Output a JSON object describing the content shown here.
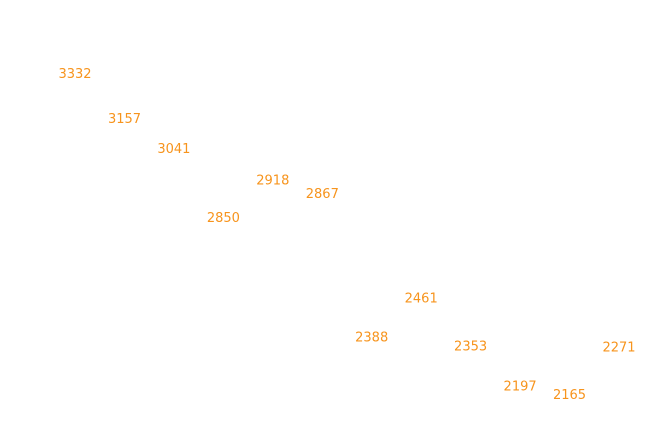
{
  "chart_data": {
    "type": "line",
    "title": "",
    "xlabel": "",
    "ylabel": "",
    "grid": false,
    "axes_visible": false,
    "points_visible": false,
    "label_color": "#f7941d",
    "ylim": [
      2000,
      3550
    ],
    "values": [
      3332,
      3157,
      3041,
      2850,
      2918,
      2867,
      2388,
      2461,
      2353,
      2197,
      2165,
      2271
    ]
  }
}
